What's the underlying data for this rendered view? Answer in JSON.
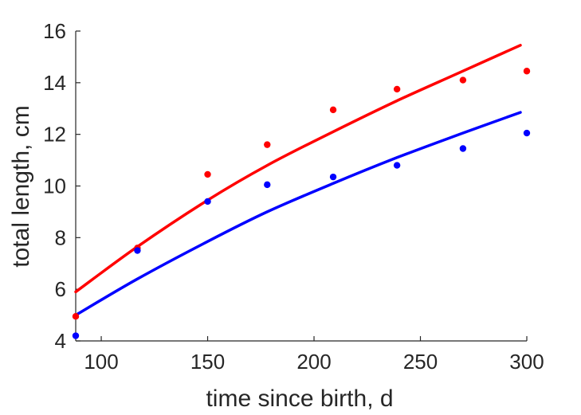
{
  "chart_data": {
    "type": "scatter",
    "title": "",
    "xlabel": "time since birth, d",
    "ylabel": "total length, cm",
    "xlim": [
      88,
      300
    ],
    "ylim": [
      4,
      16
    ],
    "xticks": [
      100,
      150,
      200,
      250,
      300
    ],
    "yticks": [
      4,
      6,
      8,
      10,
      12,
      14,
      16
    ],
    "grid": false,
    "legend": "none",
    "series": [
      {
        "color": "#ff0000",
        "kind": "points",
        "x": [
          88,
          117,
          150,
          178,
          209,
          239,
          270,
          300
        ],
        "y": [
          4.95,
          7.6,
          10.45,
          11.6,
          12.95,
          13.75,
          14.1,
          14.45
        ]
      },
      {
        "color": "#0000ff",
        "kind": "points",
        "x": [
          88,
          117,
          150,
          178,
          209,
          239,
          270,
          300
        ],
        "y": [
          4.2,
          7.5,
          9.4,
          10.05,
          10.35,
          10.8,
          11.45,
          12.05
        ]
      },
      {
        "color": "#ff0000",
        "kind": "line",
        "x": [
          88,
          117,
          150,
          178,
          209,
          239,
          270,
          297
        ],
        "y": [
          5.9,
          7.65,
          9.45,
          10.8,
          12.1,
          13.3,
          14.45,
          15.45
        ]
      },
      {
        "color": "#0000ff",
        "kind": "line",
        "x": [
          88,
          117,
          150,
          178,
          209,
          239,
          270,
          297
        ],
        "y": [
          5.0,
          6.4,
          7.85,
          9.0,
          10.1,
          11.1,
          12.05,
          12.85
        ]
      }
    ]
  }
}
